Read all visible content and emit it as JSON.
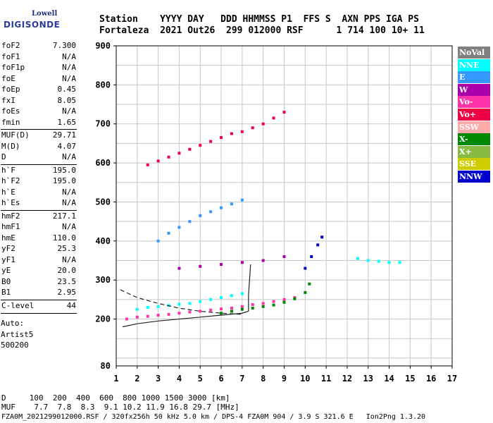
{
  "logo": {
    "top": "Lowell",
    "main": "DIGISONDE"
  },
  "header": {
    "line1": "Station    YYYY DAY   DDD HHMMSS P1  FFS S  AXN PPS IGA PS",
    "line2": "Fortaleza  2021 Out26  299 012000 RSF      1 714 100 10+ 11"
  },
  "params": [
    {
      "k": "foF2",
      "v": "7.300"
    },
    {
      "k": "foF1",
      "v": "N/A"
    },
    {
      "k": "foF1p",
      "v": "N/A"
    },
    {
      "k": "foE",
      "v": "N/A"
    },
    {
      "k": "foEp",
      "v": "0.45"
    },
    {
      "k": "fxI",
      "v": "8.05"
    },
    {
      "k": "foEs",
      "v": "N/A"
    },
    {
      "k": "fmin",
      "v": "1.65"
    },
    {
      "k": "MUF(D)",
      "v": "29.71"
    },
    {
      "k": "M(D)",
      "v": "4.07"
    },
    {
      "k": "D",
      "v": "N/A"
    },
    {
      "k": "h`F",
      "v": "195.0"
    },
    {
      "k": "h`F2",
      "v": "195.0"
    },
    {
      "k": "h`E",
      "v": "N/A"
    },
    {
      "k": "h`Es",
      "v": "N/A"
    },
    {
      "k": "hmF2",
      "v": "217.1"
    },
    {
      "k": "hmF1",
      "v": "N/A"
    },
    {
      "k": "hmE",
      "v": "110.0"
    },
    {
      "k": "yF2",
      "v": "25.3"
    },
    {
      "k": "yF1",
      "v": "N/A"
    },
    {
      "k": "yE",
      "v": "20.0"
    },
    {
      "k": "B0",
      "v": "23.5"
    },
    {
      "k": "B1",
      "v": "2.95"
    },
    {
      "k": "C-level",
      "v": "44"
    }
  ],
  "auto": [
    "Auto:",
    "Artist5",
    "500200"
  ],
  "legend": [
    {
      "label": "NoVal",
      "bg": "#808080",
      "fg": "#ffffff"
    },
    {
      "label": "NNE",
      "bg": "#00ffff",
      "fg": "#ffffff"
    },
    {
      "label": "E",
      "bg": "#3399ff",
      "fg": "#ffffff"
    },
    {
      "label": "W",
      "bg": "#aa00aa",
      "fg": "#ffffff"
    },
    {
      "label": "Vo-",
      "bg": "#ff33aa",
      "fg": "#ffffff"
    },
    {
      "label": "Vo+",
      "bg": "#ee0044",
      "fg": "#ffffff"
    },
    {
      "label": "SSW",
      "bg": "#ffaaaa",
      "fg": "#ffffff"
    },
    {
      "label": "X-",
      "bg": "#008800",
      "fg": "#ffffff"
    },
    {
      "label": "X+",
      "bg": "#88bb44",
      "fg": "#ffffff"
    },
    {
      "label": "SSE",
      "bg": "#cccc00",
      "fg": "#ffffff"
    },
    {
      "label": "NNW",
      "bg": "#0000cc",
      "fg": "#ffffff"
    }
  ],
  "footer": {
    "line1": "D     100  200  400  600  800 1000 1500 3000 [km]",
    "line2": "MUF    7.7  7.8  8.3  9.1 10.2 11.9 16.8 29.7 [MHz]",
    "line3": "FZA0M_2021299012000.RSF / 320fx256h 50 kHz 5.0 km / DPS-4 FZA0M 904 / 3.9 S 321.6 E   Ion2Png 1.3.20"
  },
  "chart_data": {
    "type": "scatter",
    "xlim": [
      1,
      17
    ],
    "ylim": [
      80,
      900
    ],
    "xticks": [
      1,
      2,
      3,
      4,
      5,
      6,
      7,
      8,
      9,
      10,
      11,
      12,
      13,
      14,
      15,
      16,
      17
    ],
    "yticks": [
      200,
      300,
      400,
      500,
      600,
      700,
      800,
      900
    ],
    "ytick_bottom": 80,
    "grid": true,
    "series": [
      {
        "name": "Vo-",
        "color": "#ff33aa",
        "x": [
          1.5,
          2,
          2.5,
          3,
          3.5,
          4,
          4.5,
          5,
          5.5,
          6,
          6.5,
          7,
          7.5,
          8,
          8.5,
          9,
          9.5
        ],
        "y": [
          200,
          205,
          207,
          210,
          212,
          215,
          218,
          220,
          223,
          226,
          228,
          232,
          237,
          240,
          245,
          250,
          255
        ]
      },
      {
        "name": "NNE",
        "color": "#00ffff",
        "x": [
          2,
          2.5,
          3,
          3.5,
          4,
          4.5,
          5,
          5.5,
          6,
          6.5,
          7
        ],
        "y": [
          225,
          230,
          232,
          235,
          238,
          240,
          245,
          250,
          255,
          260,
          265
        ]
      },
      {
        "name": "X-",
        "color": "#008800",
        "x": [
          6,
          6.5,
          7,
          7.5,
          8,
          8.5,
          9,
          9.5,
          10,
          10.2
        ],
        "y": [
          215,
          220,
          225,
          228,
          232,
          236,
          243,
          252,
          268,
          290
        ]
      },
      {
        "name": "E",
        "color": "#3399ff",
        "x": [
          3,
          3.5,
          4,
          4.5,
          5,
          5.5,
          6,
          6.5,
          7
        ],
        "y": [
          400,
          420,
          435,
          450,
          465,
          475,
          485,
          495,
          505
        ]
      },
      {
        "name": "Vo+",
        "color": "#ee0044",
        "x": [
          2.5,
          3,
          3.5,
          4,
          4.5,
          5,
          5.5,
          6,
          6.5,
          7,
          7.5,
          8,
          8.5,
          9
        ],
        "y": [
          595,
          605,
          615,
          625,
          635,
          645,
          655,
          665,
          675,
          680,
          690,
          700,
          715,
          730
        ]
      },
      {
        "name": "W",
        "color": "#aa00aa",
        "x": [
          4,
          5,
          6,
          7,
          8,
          9
        ],
        "y": [
          330,
          335,
          340,
          345,
          350,
          360
        ]
      },
      {
        "name": "NNW",
        "color": "#0000cc",
        "x": [
          10,
          10.3,
          10.6,
          10.8
        ],
        "y": [
          330,
          360,
          390,
          410
        ]
      },
      {
        "name": "NNE",
        "color": "#00ffff",
        "x": [
          12.5,
          13,
          13.5,
          14,
          14.5
        ],
        "y": [
          355,
          350,
          348,
          345,
          345
        ]
      }
    ],
    "curves": [
      {
        "x": [
          1.3,
          2,
          3,
          4,
          5,
          6,
          7,
          7.3
        ],
        "y": [
          180,
          188,
          195,
          200,
          205,
          210,
          215,
          220
        ]
      },
      {
        "x": [
          7.3,
          7.3,
          7.35,
          7.4
        ],
        "y": [
          220,
          260,
          300,
          340
        ]
      },
      {
        "x": [
          1.2,
          2,
          3,
          4,
          5,
          6,
          7
        ],
        "y": [
          275,
          255,
          240,
          228,
          220,
          215,
          212
        ]
      }
    ]
  }
}
